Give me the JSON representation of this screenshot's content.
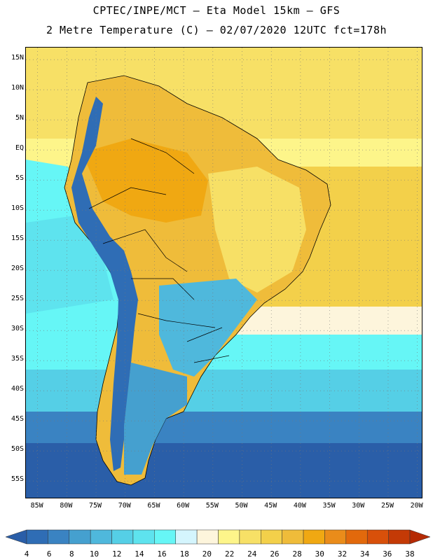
{
  "header": {
    "line1": "CPTEC/INPE/MCT –  Eta Model 15km – GFS",
    "line2": "2 Metre Temperature (C) – 02/07/2020 12UTC fct=178h"
  },
  "axes": {
    "lat_labels": [
      "15N",
      "10N",
      "5N",
      "EQ",
      "5S",
      "10S",
      "15S",
      "20S",
      "25S",
      "30S",
      "35S",
      "40S",
      "45S",
      "50S",
      "55S"
    ],
    "lon_labels": [
      "85W",
      "80W",
      "75W",
      "70W",
      "65W",
      "60W",
      "55W",
      "50W",
      "45W",
      "40W",
      "35W",
      "30W",
      "25W",
      "20W"
    ]
  },
  "colorbar": {
    "ticks": [
      "4",
      "6",
      "8",
      "10",
      "12",
      "14",
      "16",
      "18",
      "20",
      "22",
      "24",
      "26",
      "28",
      "30",
      "32",
      "34",
      "36",
      "38"
    ],
    "colors": [
      "#2a5ea8",
      "#2f6db5",
      "#3a83c2",
      "#45a0cf",
      "#4fb8dc",
      "#55cfe6",
      "#5ee3ee",
      "#66f6f6",
      "#d4f5fd",
      "#fdf5dc",
      "#fdf58a",
      "#f7e066",
      "#f3d04a",
      "#efbc3a",
      "#f0a812",
      "#ea8c1a",
      "#e2690c",
      "#d8500a",
      "#c43a06",
      "#b52a04"
    ]
  }
}
